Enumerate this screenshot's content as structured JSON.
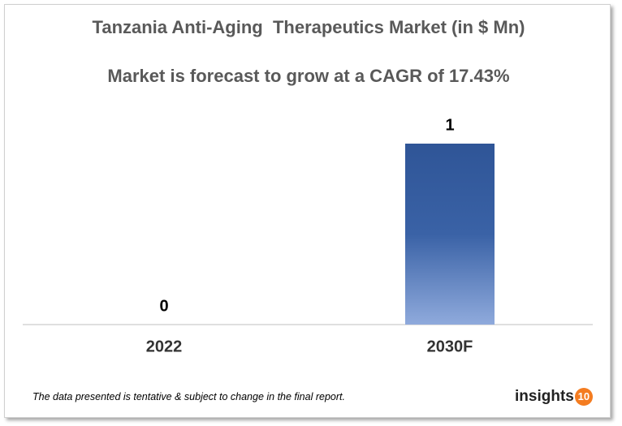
{
  "chart_data": {
    "type": "bar",
    "title": "Tanzania Anti-Aging  Therapeutics Market (in $ Mn)",
    "subtitle": "Market is forecast to grow at a CAGR of 17.43%",
    "categories": [
      "2022",
      "2030F"
    ],
    "values": [
      0,
      1
    ],
    "color": "#2f5597",
    "footnote": "The data presented is tentative & subject to change in the final report.",
    "logo": {
      "text": "insights",
      "number": "10"
    }
  }
}
